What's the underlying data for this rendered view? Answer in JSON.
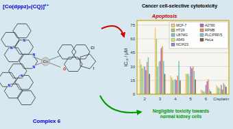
{
  "chart_data": {
    "type": "bar",
    "title": "Apoptosis",
    "ylabel": "IC₅₀ / μM",
    "categories": [
      "2",
      "3",
      "4",
      "5",
      "6",
      "Cisplatin"
    ],
    "series": [
      {
        "name": "MCF-7",
        "color": "#f5c97a",
        "values": [
          38,
          72,
          20,
          22,
          5,
          10
        ]
      },
      {
        "name": "HT29",
        "color": "#a8c66c",
        "values": [
          32,
          60,
          18,
          22,
          4,
          8
        ]
      },
      {
        "name": "U87MG",
        "color": "#7bbfbf",
        "values": [
          28,
          30,
          15,
          22,
          3,
          7
        ]
      },
      {
        "name": "A549",
        "color": "#d4e070",
        "values": [
          30,
          35,
          16,
          20,
          3,
          6
        ]
      },
      {
        "name": "NCIH23",
        "color": "#8888cc",
        "values": [
          30,
          36,
          16,
          30,
          10,
          10
        ]
      },
      {
        "name": "A2780",
        "color": "#b070b0",
        "values": [
          26,
          50,
          15,
          28,
          14,
          5
        ]
      },
      {
        "name": "RPMB",
        "color": "#e09060",
        "values": [
          35,
          52,
          20,
          30,
          16,
          12
        ]
      },
      {
        "name": "PLC/PRF/5",
        "color": "#70c8c8",
        "values": [
          40,
          36,
          36,
          25,
          5,
          10
        ]
      },
      {
        "name": "HeLa",
        "color": "#806040",
        "values": [
          22,
          22,
          15,
          16,
          3,
          8
        ]
      }
    ],
    "ylim": [
      0,
      80
    ],
    "yticks": [
      0,
      15,
      30,
      45,
      60,
      75
    ],
    "grid": true,
    "legend": "upper right",
    "annotations": [
      "[Co(dppz)₂(CQ)]²⁺",
      "Cancer cell-selective cytotoxicity",
      "Complex 6",
      "Negligible toxicity towards\nnormal kidney cells",
      "Co",
      "N",
      "N",
      "N",
      "N",
      "N",
      "N",
      "O",
      "Cl",
      "I"
    ]
  }
}
